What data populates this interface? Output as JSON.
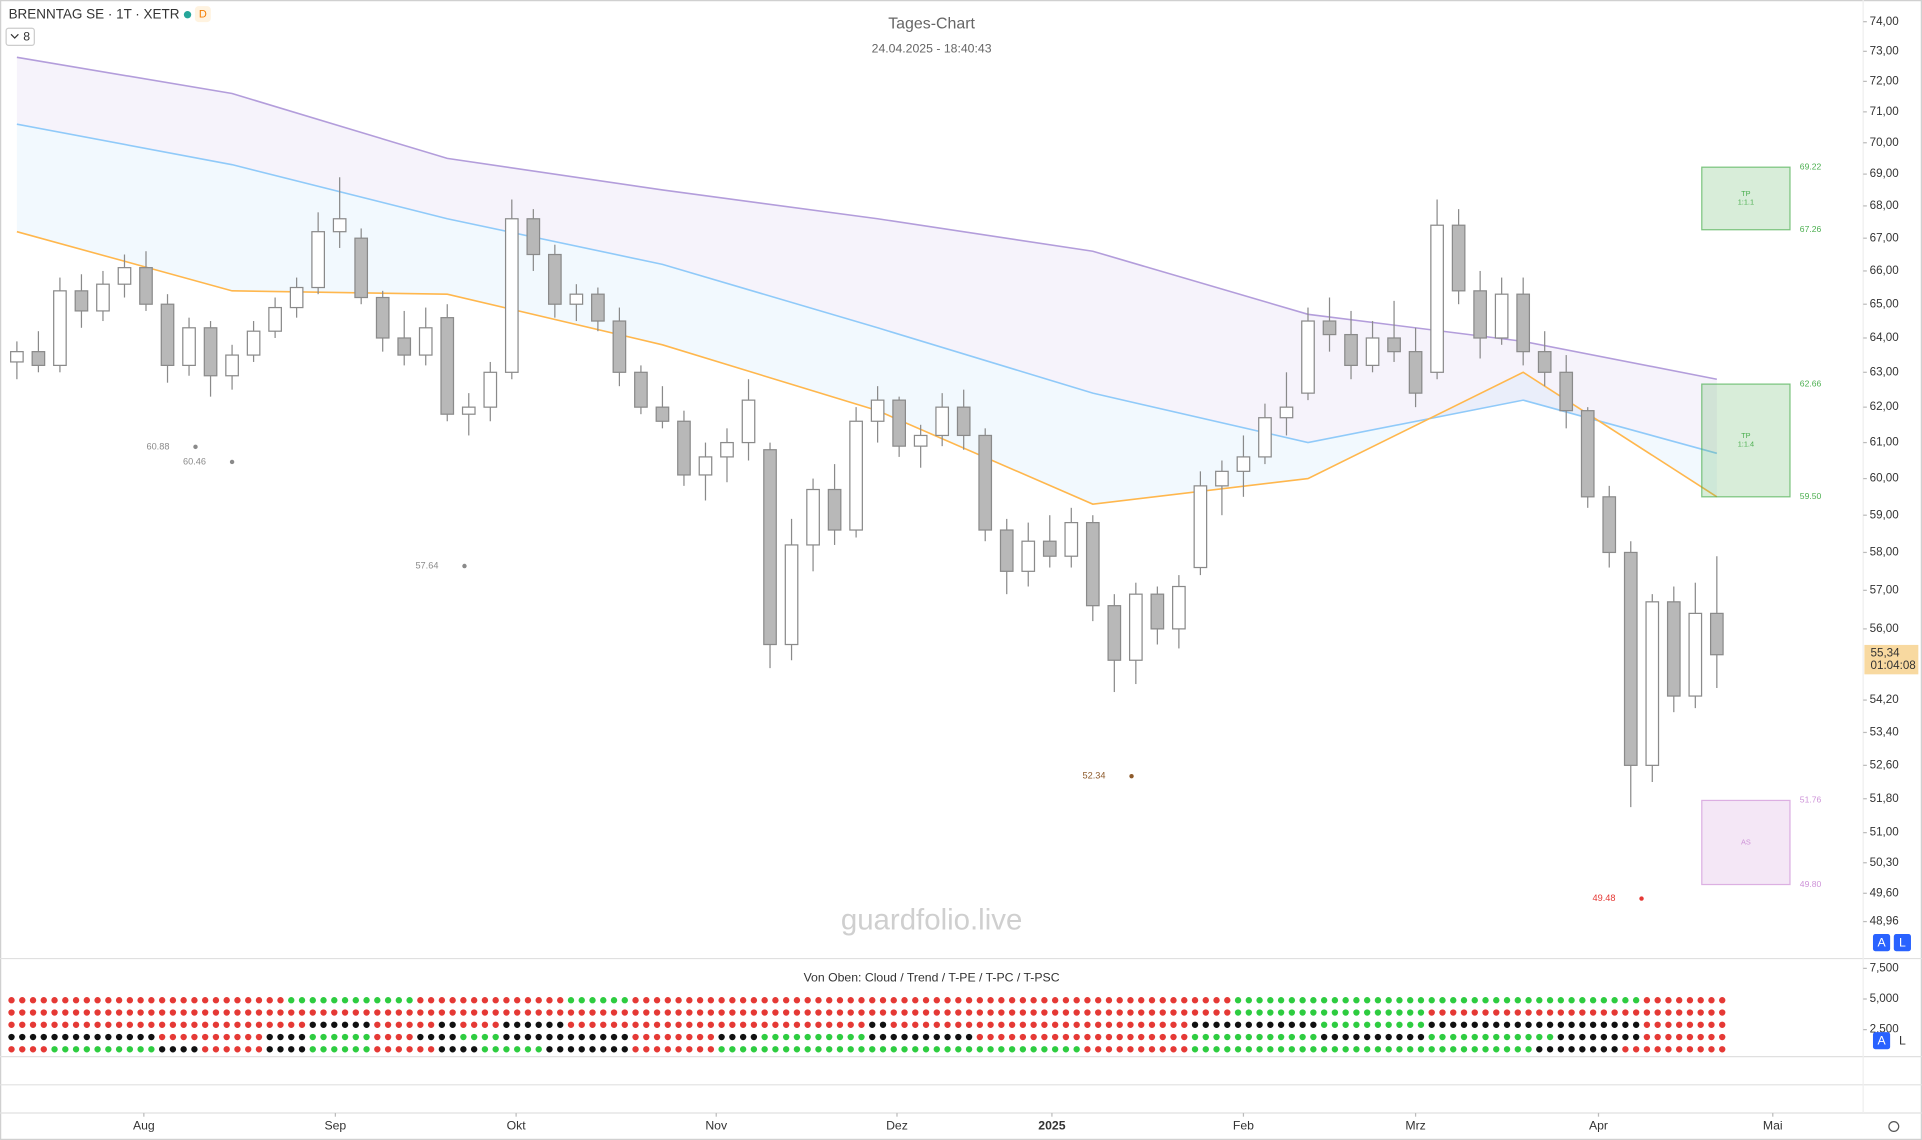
{
  "chart_data": [
    {
      "type": "candlestick",
      "title": "Tages-Chart",
      "subtitle": "24.04.2025 - 18:40:43",
      "symbol": "BRENNTAG SE · 1T · XETR",
      "interval_badge": "D",
      "indicator_count": 8,
      "watermark": "guardfolio.live",
      "buttons": [
        "A",
        "L"
      ],
      "log_scale": true,
      "grid": false,
      "up_color": "#ffffff",
      "down_color": "#b8b8b8",
      "wick_color": "#8a8a8a",
      "xlim": [
        -0.5,
        85.8
      ],
      "xticks": [
        {
          "value": 5.9,
          "label": "Aug"
        },
        {
          "value": 14.8,
          "label": "Sep"
        },
        {
          "value": 23.2,
          "label": "Okt"
        },
        {
          "value": 32.5,
          "label": "Nov"
        },
        {
          "value": 40.9,
          "label": "Dez"
        },
        {
          "value": 48.1,
          "label": "2025"
        },
        {
          "value": 57,
          "label": "Feb"
        },
        {
          "value": 65,
          "label": "Mrz"
        },
        {
          "value": 73.5,
          "label": "Apr"
        },
        {
          "value": 81.6,
          "label": "Mai"
        }
      ],
      "ylim": [
        48.19,
        74.74
      ],
      "yticks": [
        {
          "value": 74,
          "label": "74,00"
        },
        {
          "value": 73,
          "label": "73,00"
        },
        {
          "value": 72,
          "label": "72,00"
        },
        {
          "value": 71,
          "label": "71,00"
        },
        {
          "value": 70,
          "label": "70,00"
        },
        {
          "value": 69,
          "label": "69,00"
        },
        {
          "value": 68,
          "label": "68,00"
        },
        {
          "value": 67,
          "label": "67,00"
        },
        {
          "value": 66,
          "label": "66,00"
        },
        {
          "value": 65,
          "label": "65,00"
        },
        {
          "value": 64,
          "label": "64,00"
        },
        {
          "value": 63,
          "label": "63,00"
        },
        {
          "value": 62,
          "label": "62,00"
        },
        {
          "value": 61,
          "label": "61,00"
        },
        {
          "value": 60,
          "label": "60,00"
        },
        {
          "value": 59,
          "label": "59,00"
        },
        {
          "value": 58,
          "label": "58,00"
        },
        {
          "value": 57,
          "label": "57,00"
        },
        {
          "value": 56,
          "label": "56,00"
        },
        {
          "value": 54.2,
          "label": "54,20"
        },
        {
          "value": 53.4,
          "label": "53,40"
        },
        {
          "value": 52.6,
          "label": "52,60"
        },
        {
          "value": 51.8,
          "label": "51,80"
        },
        {
          "value": 51,
          "label": "51,00"
        },
        {
          "value": 50.3,
          "label": "50,30"
        },
        {
          "value": 49.6,
          "label": "49,60"
        },
        {
          "value": 48.96,
          "label": "48,96"
        }
      ],
      "last_price": {
        "value": 55.34,
        "label": "55,34"
      },
      "countdown": "01:04:08",
      "x": [
        0,
        1,
        2,
        3,
        4,
        5,
        6,
        7,
        8,
        9,
        10,
        11,
        12,
        13,
        14,
        15,
        16,
        17,
        18,
        19,
        20,
        21,
        22,
        23,
        24,
        25,
        26,
        27,
        28,
        29,
        30,
        31,
        32,
        33,
        34,
        35,
        36,
        37,
        38,
        39,
        40,
        41,
        42,
        43,
        44,
        45,
        46,
        47,
        48,
        49,
        50,
        51,
        52,
        53,
        54,
        55,
        56,
        57,
        58,
        59,
        60,
        61,
        62,
        63,
        64,
        65,
        66,
        67,
        68,
        69,
        70,
        71,
        72,
        73,
        74,
        75,
        76,
        77,
        78,
        79
      ],
      "ohlc": [
        [
          63.3,
          63.9,
          62.8,
          63.6
        ],
        [
          63.6,
          64.2,
          63.0,
          63.2
        ],
        [
          63.2,
          65.8,
          63.0,
          65.4
        ],
        [
          65.4,
          65.9,
          64.3,
          64.8
        ],
        [
          64.8,
          66.0,
          64.5,
          65.6
        ],
        [
          65.6,
          66.5,
          65.2,
          66.1
        ],
        [
          66.1,
          66.6,
          64.8,
          65.0
        ],
        [
          65.0,
          65.3,
          62.7,
          63.2
        ],
        [
          63.2,
          64.6,
          62.9,
          64.3
        ],
        [
          64.3,
          64.5,
          62.3,
          62.9
        ],
        [
          62.9,
          63.8,
          62.5,
          63.5
        ],
        [
          63.5,
          64.5,
          63.3,
          64.2
        ],
        [
          64.2,
          65.2,
          64.0,
          64.9
        ],
        [
          64.9,
          65.8,
          64.6,
          65.5
        ],
        [
          65.5,
          67.8,
          65.3,
          67.2
        ],
        [
          67.2,
          68.9,
          66.7,
          67.6
        ],
        [
          67.0,
          67.3,
          65.0,
          65.2
        ],
        [
          65.2,
          65.4,
          63.6,
          64.0
        ],
        [
          64.0,
          64.8,
          63.2,
          63.5
        ],
        [
          63.5,
          64.9,
          63.2,
          64.3
        ],
        [
          64.6,
          65.0,
          61.6,
          61.8
        ],
        [
          61.8,
          62.4,
          61.2,
          62.0
        ],
        [
          62.0,
          63.3,
          61.6,
          63.0
        ],
        [
          63.0,
          68.2,
          62.8,
          67.6
        ],
        [
          67.6,
          67.9,
          66.0,
          66.5
        ],
        [
          66.5,
          66.8,
          64.6,
          65.0
        ],
        [
          65.0,
          65.6,
          64.5,
          65.3
        ],
        [
          65.3,
          65.5,
          64.2,
          64.5
        ],
        [
          64.5,
          64.9,
          62.6,
          63.0
        ],
        [
          63.0,
          63.2,
          61.8,
          62.0
        ],
        [
          62.0,
          62.6,
          61.4,
          61.6
        ],
        [
          61.6,
          61.9,
          59.8,
          60.1
        ],
        [
          60.1,
          61.0,
          59.4,
          60.6
        ],
        [
          60.6,
          61.4,
          59.9,
          61.0
        ],
        [
          61.0,
          62.8,
          60.5,
          62.2
        ],
        [
          60.8,
          61.0,
          55.0,
          55.6
        ],
        [
          55.6,
          58.9,
          55.2,
          58.2
        ],
        [
          58.2,
          60.0,
          57.5,
          59.7
        ],
        [
          59.7,
          60.4,
          58.2,
          58.6
        ],
        [
          58.6,
          62.0,
          58.4,
          61.6
        ],
        [
          61.6,
          62.6,
          61.0,
          62.2
        ],
        [
          62.2,
          62.3,
          60.6,
          60.9
        ],
        [
          60.9,
          61.5,
          60.3,
          61.2
        ],
        [
          61.2,
          62.4,
          60.9,
          62.0
        ],
        [
          62.0,
          62.5,
          60.8,
          61.2
        ],
        [
          61.2,
          61.4,
          58.3,
          58.6
        ],
        [
          58.6,
          58.9,
          56.9,
          57.5
        ],
        [
          57.5,
          58.8,
          57.1,
          58.3
        ],
        [
          58.3,
          59.0,
          57.6,
          57.9
        ],
        [
          57.9,
          59.2,
          57.6,
          58.8
        ],
        [
          58.8,
          59.0,
          56.2,
          56.6
        ],
        [
          56.6,
          56.9,
          54.4,
          55.2
        ],
        [
          55.2,
          57.2,
          54.6,
          56.9
        ],
        [
          56.9,
          57.1,
          55.6,
          56.0
        ],
        [
          56.0,
          57.4,
          55.5,
          57.1
        ],
        [
          57.6,
          60.2,
          57.4,
          59.8
        ],
        [
          59.8,
          60.5,
          59.0,
          60.2
        ],
        [
          60.2,
          61.2,
          59.5,
          60.6
        ],
        [
          60.6,
          62.1,
          60.4,
          61.7
        ],
        [
          61.7,
          63.0,
          61.2,
          62.0
        ],
        [
          62.4,
          64.9,
          62.2,
          64.5
        ],
        [
          64.5,
          65.2,
          63.6,
          64.1
        ],
        [
          64.1,
          64.8,
          62.8,
          63.2
        ],
        [
          63.2,
          64.5,
          63.0,
          64.0
        ],
        [
          64.0,
          65.1,
          63.3,
          63.6
        ],
        [
          63.6,
          64.3,
          62.0,
          62.4
        ],
        [
          63.0,
          68.2,
          62.8,
          67.4
        ],
        [
          67.4,
          67.9,
          65.0,
          65.4
        ],
        [
          65.4,
          66.0,
          63.4,
          64.0
        ],
        [
          64.0,
          65.8,
          63.8,
          65.3
        ],
        [
          65.3,
          65.8,
          63.2,
          63.6
        ],
        [
          63.6,
          64.2,
          62.6,
          63.0
        ],
        [
          63.0,
          63.5,
          61.4,
          61.9
        ],
        [
          61.9,
          62.0,
          59.2,
          59.5
        ],
        [
          59.5,
          59.8,
          57.6,
          58.0
        ],
        [
          58.0,
          58.3,
          51.6,
          52.6
        ],
        [
          52.6,
          56.9,
          52.2,
          56.7
        ],
        [
          56.7,
          57.1,
          53.9,
          54.3
        ],
        [
          54.3,
          57.2,
          54.0,
          56.4
        ],
        [
          56.4,
          57.9,
          54.5,
          55.34
        ]
      ],
      "bands": [
        {
          "color": "#b39ddb",
          "x": [
            0,
            10,
            20,
            30,
            40,
            50,
            60,
            70,
            79
          ],
          "values": [
            72.8,
            71.6,
            69.5,
            68.5,
            67.6,
            66.6,
            64.7,
            63.9,
            62.8
          ]
        },
        {
          "color": "#90caf9",
          "x": [
            0,
            10,
            20,
            30,
            40,
            50,
            60,
            70,
            79
          ],
          "values": [
            70.6,
            69.3,
            67.6,
            66.2,
            64.3,
            62.4,
            61.0,
            62.2,
            60.7
          ]
        },
        {
          "color": "#ffb74d",
          "x": [
            0,
            10,
            20,
            30,
            40,
            50,
            60,
            70,
            79
          ],
          "values": [
            67.2,
            65.4,
            65.3,
            63.8,
            61.9,
            59.3,
            60.0,
            63.0,
            59.5
          ]
        }
      ],
      "level_marks": [
        {
          "value": 60.88,
          "x": 8.3,
          "color": "#8a8a8a"
        },
        {
          "value": 60.46,
          "x": 10.0,
          "color": "#8a8a8a"
        },
        {
          "value": 57.64,
          "x": 20.8,
          "color": "#8a8a8a"
        },
        {
          "value": 52.34,
          "x": 51.8,
          "color": "#8d5a2b"
        },
        {
          "value": 49.48,
          "x": 75.5,
          "color": "#e53935"
        }
      ],
      "zones": [
        {
          "top": 69.22,
          "bottom": 67.26,
          "x": [
            78.3,
            82.4
          ],
          "color": "#4caf50",
          "text": [
            "TP",
            "1:1.1"
          ]
        },
        {
          "top": 62.66,
          "bottom": {
            "value": 59.5,
            "label": "59.50"
          },
          "x": [
            78.3,
            82.4
          ],
          "color": "#4caf50",
          "text": [
            "TP",
            "1:1.4"
          ]
        },
        {
          "top": 51.76,
          "bottom": {
            "value": 49.8,
            "label": "49.80"
          },
          "x": [
            78.3,
            82.4
          ],
          "color": "#ce93d8",
          "text": [
            "AS"
          ]
        }
      ]
    },
    {
      "type": "signals",
      "title": "Von Oben: Cloud / Trend / T-PE / T-PC / T-PSC",
      "buttons": [
        "A",
        "L"
      ],
      "xlim": [
        -0.5,
        85.8
      ],
      "ylim": [
        0.5,
        8.3
      ],
      "yticks": [
        {
          "value": 7.5,
          "label": "7,500"
        },
        {
          "value": 5,
          "label": "5,000"
        },
        {
          "value": 2.5,
          "label": "2,500"
        }
      ],
      "palette": {
        "r": "#e53935",
        "g": "#2ecc40",
        "k": "#111111"
      },
      "rows": [
        {
          "y": 4.9,
          "signals": "rrrrrrrrrrrrrggggggrrrrrrrgggrrrrrrrrrrrrrrrrrrrrrrrrrrrrgggggggggggggggggggrrrr"
        },
        {
          "y": 3.9,
          "signals": "rrrrrrrrrrrrrrrrrrrrrrrrrrrrrrrrrrrrrrrrrrrrrrrrrrrrrrrrrgggggggggrrrrrrrrrrrrrr"
        },
        {
          "y": 2.9,
          "signals": "rrrrrrrrrrrrrrkkkrrrkrrkkkrrrrrrrrrrrrrrkrrrrrrrrrrrrrrkkkkkkgggggkkkkkkkkkkrrrr"
        },
        {
          "y": 1.9,
          "signals": "kkkkkkkrrrrrkkgggrrkkggkkkkkkrrrrkkgggggkkkkkrrrrrrrrrrggggggkkkkkggggggkkkkrrrr"
        },
        {
          "y": 0.9,
          "signals": "rrgggggkkrrrkkgggrrrkkgggkkkkrrrrgggggggggggggggggrrrrrggggggggggggggggkkkkrrrrr"
        }
      ]
    }
  ]
}
